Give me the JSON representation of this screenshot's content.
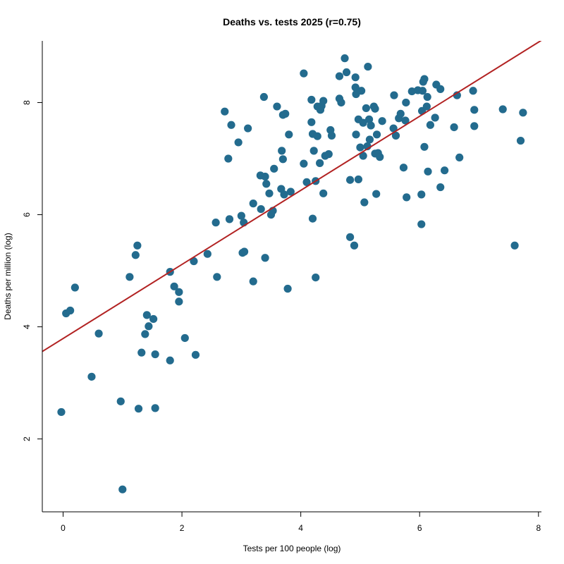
{
  "chart_data": {
    "type": "scatter",
    "title": "Deaths vs. tests 2025 (r=0.75)",
    "xlabel": "Tests per 100 people (log)",
    "ylabel": "Deaths per million (log)",
    "xlim": [
      -0.35,
      8.05
    ],
    "ylim": [
      0.7,
      9.1
    ],
    "xticks": [
      0,
      2,
      4,
      6,
      8
    ],
    "yticks": [
      2,
      4,
      6,
      8
    ],
    "grid": false,
    "legend": "none",
    "colors": {
      "points": "#236b8e",
      "fit_line": "#b22222",
      "axis": "#000000"
    },
    "fit_line": {
      "x": [
        -0.35,
        8.05
      ],
      "y": [
        3.56,
        9.11
      ]
    },
    "points": [
      {
        "x": -0.03,
        "y": 2.48
      },
      {
        "x": 0.05,
        "y": 4.24
      },
      {
        "x": 0.12,
        "y": 4.29
      },
      {
        "x": 0.2,
        "y": 4.7
      },
      {
        "x": 0.48,
        "y": 3.11
      },
      {
        "x": 0.6,
        "y": 3.88
      },
      {
        "x": 0.97,
        "y": 2.67
      },
      {
        "x": 1.0,
        "y": 1.1
      },
      {
        "x": 1.12,
        "y": 4.89
      },
      {
        "x": 1.22,
        "y": 5.28
      },
      {
        "x": 1.25,
        "y": 5.45
      },
      {
        "x": 1.27,
        "y": 2.54
      },
      {
        "x": 1.32,
        "y": 3.54
      },
      {
        "x": 1.38,
        "y": 3.87
      },
      {
        "x": 1.41,
        "y": 4.21
      },
      {
        "x": 1.44,
        "y": 4.01
      },
      {
        "x": 1.52,
        "y": 4.14
      },
      {
        "x": 1.55,
        "y": 3.51
      },
      {
        "x": 1.55,
        "y": 2.55
      },
      {
        "x": 1.8,
        "y": 4.98
      },
      {
        "x": 1.8,
        "y": 3.4
      },
      {
        "x": 1.87,
        "y": 4.72
      },
      {
        "x": 1.95,
        "y": 4.62
      },
      {
        "x": 1.95,
        "y": 4.45
      },
      {
        "x": 2.05,
        "y": 3.8
      },
      {
        "x": 2.2,
        "y": 5.17
      },
      {
        "x": 2.23,
        "y": 3.5
      },
      {
        "x": 2.43,
        "y": 5.3
      },
      {
        "x": 2.57,
        "y": 5.86
      },
      {
        "x": 2.59,
        "y": 4.89
      },
      {
        "x": 2.72,
        "y": 7.84
      },
      {
        "x": 2.78,
        "y": 7.0
      },
      {
        "x": 2.8,
        "y": 5.92
      },
      {
        "x": 2.83,
        "y": 7.6
      },
      {
        "x": 2.95,
        "y": 7.29
      },
      {
        "x": 3.0,
        "y": 5.98
      },
      {
        "x": 3.02,
        "y": 5.32
      },
      {
        "x": 3.04,
        "y": 5.86
      },
      {
        "x": 3.05,
        "y": 5.34
      },
      {
        "x": 3.11,
        "y": 7.54
      },
      {
        "x": 3.2,
        "y": 4.81
      },
      {
        "x": 3.2,
        "y": 6.2
      },
      {
        "x": 3.32,
        "y": 6.7
      },
      {
        "x": 3.33,
        "y": 6.1
      },
      {
        "x": 3.38,
        "y": 8.1
      },
      {
        "x": 3.4,
        "y": 5.23
      },
      {
        "x": 3.4,
        "y": 6.68
      },
      {
        "x": 3.42,
        "y": 6.55
      },
      {
        "x": 3.47,
        "y": 6.38
      },
      {
        "x": 3.5,
        "y": 6.0
      },
      {
        "x": 3.53,
        "y": 6.07
      },
      {
        "x": 3.55,
        "y": 6.82
      },
      {
        "x": 3.6,
        "y": 7.93
      },
      {
        "x": 3.67,
        "y": 6.46
      },
      {
        "x": 3.68,
        "y": 7.14
      },
      {
        "x": 3.7,
        "y": 6.99
      },
      {
        "x": 3.72,
        "y": 6.36
      },
      {
        "x": 3.74,
        "y": 7.8
      },
      {
        "x": 3.7,
        "y": 7.78
      },
      {
        "x": 3.78,
        "y": 4.68
      },
      {
        "x": 3.8,
        "y": 7.43
      },
      {
        "x": 3.83,
        "y": 6.41
      },
      {
        "x": 4.05,
        "y": 8.52
      },
      {
        "x": 4.05,
        "y": 6.91
      },
      {
        "x": 4.1,
        "y": 6.58
      },
      {
        "x": 4.18,
        "y": 8.05
      },
      {
        "x": 4.18,
        "y": 7.65
      },
      {
        "x": 4.2,
        "y": 5.93
      },
      {
        "x": 4.2,
        "y": 7.44
      },
      {
        "x": 4.22,
        "y": 7.14
      },
      {
        "x": 4.25,
        "y": 6.6
      },
      {
        "x": 4.25,
        "y": 4.88
      },
      {
        "x": 4.28,
        "y": 7.4
      },
      {
        "x": 4.28,
        "y": 7.93
      },
      {
        "x": 4.32,
        "y": 6.92
      },
      {
        "x": 4.33,
        "y": 7.87
      },
      {
        "x": 4.35,
        "y": 7.94
      },
      {
        "x": 4.38,
        "y": 8.03
      },
      {
        "x": 4.38,
        "y": 6.38
      },
      {
        "x": 4.41,
        "y": 7.05
      },
      {
        "x": 4.47,
        "y": 7.08
      },
      {
        "x": 4.5,
        "y": 7.51
      },
      {
        "x": 4.52,
        "y": 7.41
      },
      {
        "x": 4.65,
        "y": 8.47
      },
      {
        "x": 4.65,
        "y": 8.07
      },
      {
        "x": 4.68,
        "y": 8.0
      },
      {
        "x": 4.74,
        "y": 8.79
      },
      {
        "x": 4.77,
        "y": 8.54
      },
      {
        "x": 4.83,
        "y": 6.62
      },
      {
        "x": 4.83,
        "y": 5.6
      },
      {
        "x": 4.9,
        "y": 5.45
      },
      {
        "x": 4.92,
        "y": 8.45
      },
      {
        "x": 4.92,
        "y": 8.27
      },
      {
        "x": 4.93,
        "y": 8.15
      },
      {
        "x": 4.93,
        "y": 7.43
      },
      {
        "x": 4.97,
        "y": 6.63
      },
      {
        "x": 4.97,
        "y": 7.7
      },
      {
        "x": 5.0,
        "y": 7.2
      },
      {
        "x": 5.02,
        "y": 8.21
      },
      {
        "x": 5.05,
        "y": 7.64
      },
      {
        "x": 5.05,
        "y": 7.05
      },
      {
        "x": 5.07,
        "y": 6.22
      },
      {
        "x": 5.1,
        "y": 7.9
      },
      {
        "x": 5.12,
        "y": 7.22
      },
      {
        "x": 5.13,
        "y": 8.64
      },
      {
        "x": 5.15,
        "y": 7.7
      },
      {
        "x": 5.16,
        "y": 7.34
      },
      {
        "x": 5.18,
        "y": 7.59
      },
      {
        "x": 5.23,
        "y": 7.93
      },
      {
        "x": 5.25,
        "y": 7.89
      },
      {
        "x": 5.25,
        "y": 7.09
      },
      {
        "x": 5.27,
        "y": 6.37
      },
      {
        "x": 5.28,
        "y": 7.43
      },
      {
        "x": 5.3,
        "y": 7.1
      },
      {
        "x": 5.33,
        "y": 7.03
      },
      {
        "x": 5.37,
        "y": 7.67
      },
      {
        "x": 5.56,
        "y": 7.54
      },
      {
        "x": 5.57,
        "y": 8.13
      },
      {
        "x": 5.6,
        "y": 7.41
      },
      {
        "x": 5.65,
        "y": 7.72
      },
      {
        "x": 5.68,
        "y": 7.8
      },
      {
        "x": 5.73,
        "y": 6.84
      },
      {
        "x": 5.76,
        "y": 7.68
      },
      {
        "x": 5.77,
        "y": 8.0
      },
      {
        "x": 5.78,
        "y": 6.31
      },
      {
        "x": 5.87,
        "y": 8.2
      },
      {
        "x": 5.97,
        "y": 8.22
      },
      {
        "x": 6.03,
        "y": 6.36
      },
      {
        "x": 6.03,
        "y": 5.83
      },
      {
        "x": 6.04,
        "y": 7.85
      },
      {
        "x": 6.05,
        "y": 8.21
      },
      {
        "x": 6.06,
        "y": 8.37
      },
      {
        "x": 6.08,
        "y": 8.42
      },
      {
        "x": 6.08,
        "y": 7.21
      },
      {
        "x": 6.12,
        "y": 7.93
      },
      {
        "x": 6.13,
        "y": 8.1
      },
      {
        "x": 6.14,
        "y": 6.77
      },
      {
        "x": 6.18,
        "y": 7.6
      },
      {
        "x": 6.26,
        "y": 7.73
      },
      {
        "x": 6.28,
        "y": 8.32
      },
      {
        "x": 6.35,
        "y": 8.24
      },
      {
        "x": 6.35,
        "y": 6.49
      },
      {
        "x": 6.42,
        "y": 6.79
      },
      {
        "x": 6.58,
        "y": 7.56
      },
      {
        "x": 6.63,
        "y": 8.13
      },
      {
        "x": 6.67,
        "y": 7.02
      },
      {
        "x": 6.9,
        "y": 8.21
      },
      {
        "x": 6.92,
        "y": 7.87
      },
      {
        "x": 6.92,
        "y": 7.58
      },
      {
        "x": 7.4,
        "y": 7.88
      },
      {
        "x": 7.6,
        "y": 5.45
      },
      {
        "x": 7.7,
        "y": 7.32
      },
      {
        "x": 7.74,
        "y": 7.82
      }
    ]
  }
}
